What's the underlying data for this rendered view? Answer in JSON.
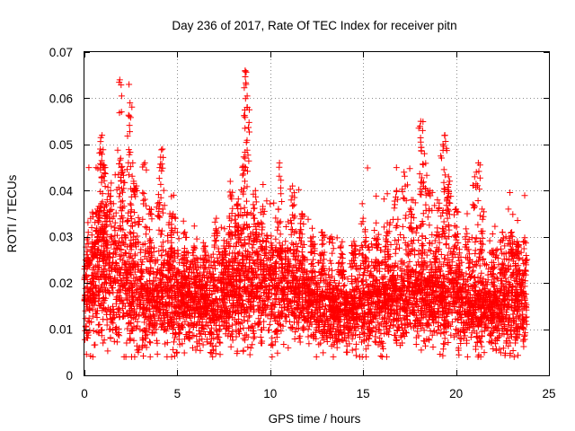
{
  "chart_data": {
    "type": "scatter",
    "marker": "plus",
    "title": "Day 236 of 2017, Rate Of TEC Index for receiver pitn",
    "xlabel": "GPS time / hours",
    "ylabel": "ROTI / TECUs",
    "xlim": [
      0,
      25
    ],
    "ylim": [
      0,
      0.07
    ],
    "xticks": [
      0,
      5,
      10,
      15,
      20,
      25
    ],
    "yticks": [
      0,
      0.01,
      0.02,
      0.03,
      0.04,
      0.05,
      0.06,
      0.07
    ],
    "xtick_labels": [
      "0",
      "5",
      "10",
      "15",
      "20",
      "25"
    ],
    "ytick_labels": [
      "0",
      "0.01",
      "0.02",
      "0.03",
      "0.04",
      "0.05",
      "0.06",
      "0.07"
    ],
    "grid": true,
    "color": "#ff0000",
    "x_range_of_data": [
      0.0,
      23.8
    ],
    "baseline_profile": [
      {
        "hour": 0,
        "median": 0.016,
        "spread": 0.006
      },
      {
        "hour": 1,
        "median": 0.022,
        "spread": 0.009
      },
      {
        "hour": 2,
        "median": 0.02,
        "spread": 0.008
      },
      {
        "hour": 3,
        "median": 0.016,
        "spread": 0.006
      },
      {
        "hour": 4,
        "median": 0.016,
        "spread": 0.006
      },
      {
        "hour": 5,
        "median": 0.017,
        "spread": 0.006
      },
      {
        "hour": 6,
        "median": 0.016,
        "spread": 0.005
      },
      {
        "hour": 7,
        "median": 0.015,
        "spread": 0.006
      },
      {
        "hour": 8,
        "median": 0.019,
        "spread": 0.007
      },
      {
        "hour": 9,
        "median": 0.02,
        "spread": 0.007
      },
      {
        "hour": 10,
        "median": 0.02,
        "spread": 0.007
      },
      {
        "hour": 11,
        "median": 0.019,
        "spread": 0.006
      },
      {
        "hour": 12,
        "median": 0.016,
        "spread": 0.005
      },
      {
        "hour": 13,
        "median": 0.015,
        "spread": 0.005
      },
      {
        "hour": 14,
        "median": 0.014,
        "spread": 0.004
      },
      {
        "hour": 15,
        "median": 0.017,
        "spread": 0.006
      },
      {
        "hour": 16,
        "median": 0.017,
        "spread": 0.006
      },
      {
        "hour": 17,
        "median": 0.017,
        "spread": 0.006
      },
      {
        "hour": 18,
        "median": 0.018,
        "spread": 0.006
      },
      {
        "hour": 19,
        "median": 0.017,
        "spread": 0.006
      },
      {
        "hour": 20,
        "median": 0.017,
        "spread": 0.006
      },
      {
        "hour": 21,
        "median": 0.015,
        "spread": 0.005
      },
      {
        "hour": 22,
        "median": 0.014,
        "spread": 0.005
      },
      {
        "hour": 23,
        "median": 0.016,
        "spread": 0.006
      }
    ],
    "peaks": [
      {
        "x": 0.2,
        "y": 0.025
      },
      {
        "x": 0.45,
        "y": 0.035
      },
      {
        "x": 0.7,
        "y": 0.036
      },
      {
        "x": 0.85,
        "y": 0.049
      },
      {
        "x": 0.95,
        "y": 0.052
      },
      {
        "x": 1.15,
        "y": 0.037
      },
      {
        "x": 1.4,
        "y": 0.04
      },
      {
        "x": 1.9,
        "y": 0.064
      },
      {
        "x": 1.95,
        "y": 0.047
      },
      {
        "x": 2.05,
        "y": 0.044
      },
      {
        "x": 2.4,
        "y": 0.063
      },
      {
        "x": 2.45,
        "y": 0.059
      },
      {
        "x": 2.6,
        "y": 0.046
      },
      {
        "x": 2.8,
        "y": 0.041
      },
      {
        "x": 3.25,
        "y": 0.046
      },
      {
        "x": 3.5,
        "y": 0.036
      },
      {
        "x": 4.05,
        "y": 0.045
      },
      {
        "x": 4.2,
        "y": 0.049
      },
      {
        "x": 4.6,
        "y": 0.035
      },
      {
        "x": 4.8,
        "y": 0.039
      },
      {
        "x": 5.4,
        "y": 0.031
      },
      {
        "x": 5.9,
        "y": 0.028
      },
      {
        "x": 6.5,
        "y": 0.028
      },
      {
        "x": 7.1,
        "y": 0.034
      },
      {
        "x": 7.5,
        "y": 0.028
      },
      {
        "x": 7.85,
        "y": 0.042
      },
      {
        "x": 8.2,
        "y": 0.037
      },
      {
        "x": 8.5,
        "y": 0.045
      },
      {
        "x": 8.65,
        "y": 0.066
      },
      {
        "x": 8.7,
        "y": 0.063
      },
      {
        "x": 8.75,
        "y": 0.058
      },
      {
        "x": 9.2,
        "y": 0.04
      },
      {
        "x": 9.6,
        "y": 0.036
      },
      {
        "x": 10.5,
        "y": 0.046
      },
      {
        "x": 11.2,
        "y": 0.041
      },
      {
        "x": 11.7,
        "y": 0.035
      },
      {
        "x": 12.3,
        "y": 0.03
      },
      {
        "x": 12.8,
        "y": 0.031
      },
      {
        "x": 13.3,
        "y": 0.03
      },
      {
        "x": 13.8,
        "y": 0.028
      },
      {
        "x": 14.5,
        "y": 0.029
      },
      {
        "x": 15.0,
        "y": 0.034
      },
      {
        "x": 15.7,
        "y": 0.033
      },
      {
        "x": 16.3,
        "y": 0.033
      },
      {
        "x": 16.8,
        "y": 0.04
      },
      {
        "x": 17.2,
        "y": 0.044
      },
      {
        "x": 17.6,
        "y": 0.038
      },
      {
        "x": 18.1,
        "y": 0.055
      },
      {
        "x": 18.2,
        "y": 0.053
      },
      {
        "x": 18.3,
        "y": 0.048
      },
      {
        "x": 18.6,
        "y": 0.04
      },
      {
        "x": 19.0,
        "y": 0.038
      },
      {
        "x": 19.3,
        "y": 0.05
      },
      {
        "x": 19.4,
        "y": 0.052
      },
      {
        "x": 19.6,
        "y": 0.043
      },
      {
        "x": 20.0,
        "y": 0.036
      },
      {
        "x": 20.6,
        "y": 0.035
      },
      {
        "x": 21.0,
        "y": 0.043
      },
      {
        "x": 21.2,
        "y": 0.046
      },
      {
        "x": 21.4,
        "y": 0.036
      },
      {
        "x": 22.0,
        "y": 0.027
      },
      {
        "x": 22.5,
        "y": 0.031
      },
      {
        "x": 23.0,
        "y": 0.031
      },
      {
        "x": 23.3,
        "y": 0.029
      },
      {
        "x": 23.7,
        "y": 0.029
      }
    ],
    "lows": [
      {
        "x": 1.0,
        "y": 0.007
      },
      {
        "x": 1.4,
        "y": 0.008
      },
      {
        "x": 2.9,
        "y": 0.005
      },
      {
        "x": 3.1,
        "y": 0.006
      },
      {
        "x": 5.1,
        "y": 0.009
      },
      {
        "x": 6.8,
        "y": 0.007
      },
      {
        "x": 6.9,
        "y": 0.004
      },
      {
        "x": 7.3,
        "y": 0.007
      },
      {
        "x": 7.6,
        "y": 0.009
      },
      {
        "x": 9.1,
        "y": 0.008
      },
      {
        "x": 9.5,
        "y": 0.007
      },
      {
        "x": 10.1,
        "y": 0.004
      },
      {
        "x": 13.6,
        "y": 0.006
      },
      {
        "x": 14.1,
        "y": 0.005
      },
      {
        "x": 15.3,
        "y": 0.008
      },
      {
        "x": 16.8,
        "y": 0.007
      },
      {
        "x": 17.1,
        "y": 0.007
      },
      {
        "x": 19.4,
        "y": 0.008
      },
      {
        "x": 20.4,
        "y": 0.008
      },
      {
        "x": 21.9,
        "y": 0.007
      },
      {
        "x": 22.7,
        "y": 0.007
      }
    ]
  }
}
